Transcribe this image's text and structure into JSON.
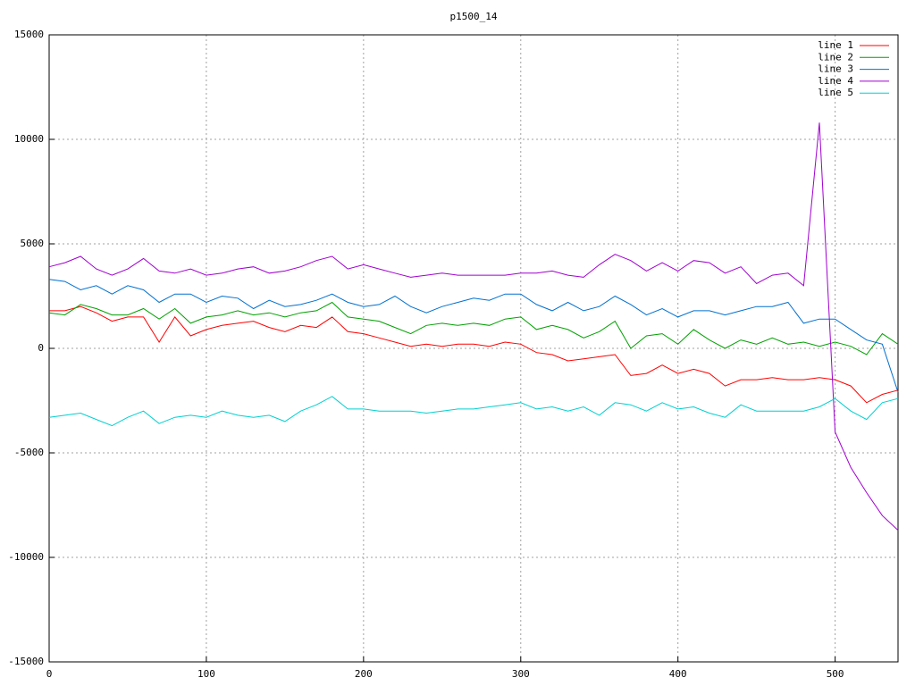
{
  "chart_data": {
    "type": "line",
    "title": "p1500_14",
    "x": [
      0,
      10,
      20,
      30,
      40,
      50,
      60,
      70,
      80,
      90,
      100,
      110,
      120,
      130,
      140,
      150,
      160,
      170,
      180,
      190,
      200,
      210,
      220,
      230,
      240,
      250,
      260,
      270,
      280,
      290,
      300,
      310,
      320,
      330,
      340,
      350,
      360,
      370,
      380,
      390,
      400,
      410,
      420,
      430,
      440,
      450,
      460,
      470,
      480,
      490,
      500,
      510,
      520,
      530,
      540
    ],
    "series": [
      {
        "name": "line 1",
        "color": "#ff0000",
        "values": [
          1800,
          1800,
          2000,
          1700,
          1300,
          1500,
          1500,
          300,
          1500,
          600,
          900,
          1100,
          1200,
          1300,
          1000,
          800,
          1100,
          1000,
          1500,
          800,
          700,
          500,
          300,
          100,
          200,
          100,
          200,
          200,
          100,
          300,
          200,
          -200,
          -300,
          -600,
          -500,
          -400,
          -300,
          -1300,
          -1200,
          -800,
          -1200,
          -1000,
          -1200,
          -1800,
          -1500,
          -1500,
          -1400,
          -1500,
          -1500,
          -1400,
          -1500,
          -1800,
          -2600,
          -2200,
          -2000
        ]
      },
      {
        "name": "line 2",
        "color": "#00a000",
        "values": [
          1700,
          1600,
          2100,
          1900,
          1600,
          1600,
          1900,
          1400,
          1900,
          1200,
          1500,
          1600,
          1800,
          1600,
          1700,
          1500,
          1700,
          1800,
          2200,
          1500,
          1400,
          1300,
          1000,
          700,
          1100,
          1200,
          1100,
          1200,
          1100,
          1400,
          1500,
          900,
          1100,
          900,
          500,
          800,
          1300,
          0,
          600,
          700,
          200,
          900,
          400,
          0,
          400,
          200,
          500,
          200,
          300,
          100,
          300,
          100,
          -300,
          700,
          200
        ]
      },
      {
        "name": "line 3",
        "color": "#0070d0",
        "values": [
          3300,
          3200,
          2800,
          3000,
          2600,
          3000,
          2800,
          2200,
          2600,
          2600,
          2200,
          2500,
          2400,
          1900,
          2300,
          2000,
          2100,
          2300,
          2600,
          2200,
          2000,
          2100,
          2500,
          2000,
          1700,
          2000,
          2200,
          2400,
          2300,
          2600,
          2600,
          2100,
          1800,
          2200,
          1800,
          2000,
          2500,
          2100,
          1600,
          1900,
          1500,
          1800,
          1800,
          1600,
          1800,
          2000,
          2000,
          2200,
          1200,
          1400,
          1400,
          900,
          400,
          200,
          -2100
        ]
      },
      {
        "name": "line 4",
        "color": "#a000d0",
        "values": [
          3900,
          4100,
          4400,
          3800,
          3500,
          3800,
          4300,
          3700,
          3600,
          3800,
          3500,
          3600,
          3800,
          3900,
          3600,
          3700,
          3900,
          4200,
          4400,
          3800,
          4000,
          3800,
          3600,
          3400,
          3500,
          3600,
          3500,
          3500,
          3500,
          3500,
          3600,
          3600,
          3700,
          3500,
          3400,
          4000,
          4500,
          4200,
          3700,
          4100,
          3700,
          4200,
          4100,
          3600,
          3900,
          3100,
          3500,
          3600,
          3000,
          10800,
          -4000,
          -5700,
          -6900,
          -8000,
          -8700
        ]
      },
      {
        "name": "line 5",
        "color": "#00d0d0",
        "values": [
          -3300,
          -3200,
          -3100,
          -3400,
          -3700,
          -3300,
          -3000,
          -3600,
          -3300,
          -3200,
          -3300,
          -3000,
          -3200,
          -3300,
          -3200,
          -3500,
          -3000,
          -2700,
          -2300,
          -2900,
          -2900,
          -3000,
          -3000,
          -3000,
          -3100,
          -3000,
          -2900,
          -2900,
          -2800,
          -2700,
          -2600,
          -2900,
          -2800,
          -3000,
          -2800,
          -3200,
          -2600,
          -2700,
          -3000,
          -2600,
          -2900,
          -2800,
          -3100,
          -3300,
          -2700,
          -3000,
          -3000,
          -3000,
          -3000,
          -2800,
          -2400,
          -3000,
          -3400,
          -2600,
          -2400
        ]
      }
    ],
    "xlim": [
      0,
      540
    ],
    "xticks": [
      0,
      100,
      200,
      300,
      400,
      500
    ],
    "ylim": [
      -15000,
      15000
    ],
    "yticks": [
      -15000,
      -10000,
      -5000,
      0,
      5000,
      10000,
      15000
    ],
    "grid": true,
    "legend": "top-right"
  }
}
